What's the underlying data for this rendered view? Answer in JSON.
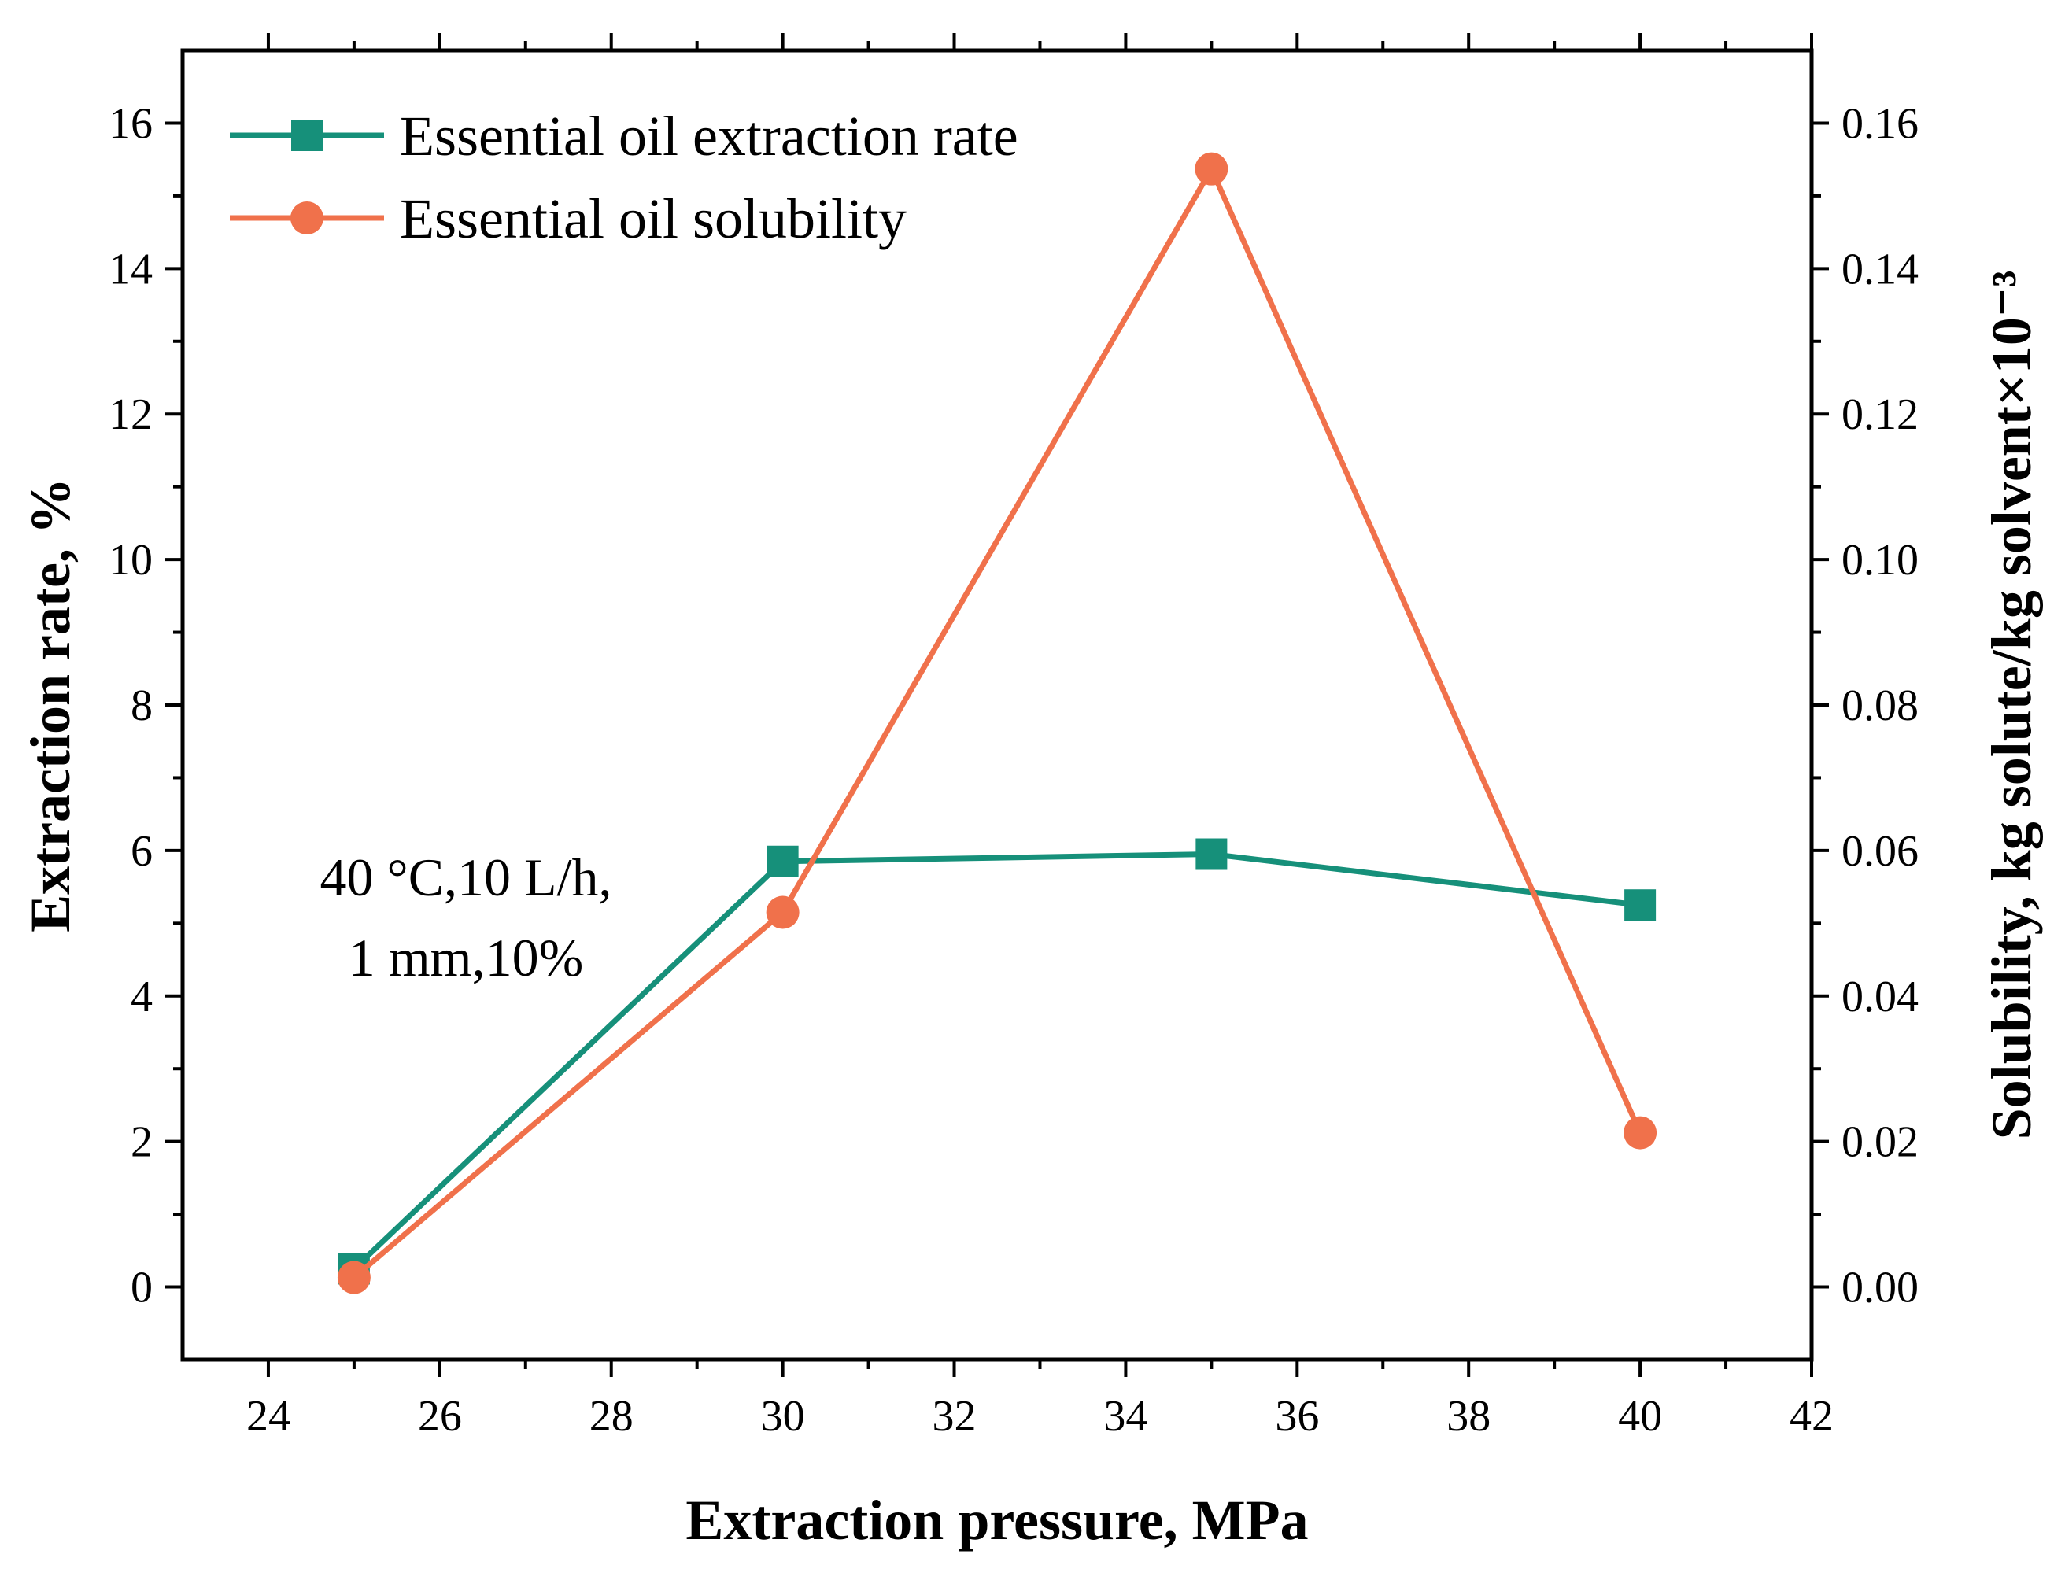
{
  "chart_data": {
    "type": "line",
    "xlabel": "Extraction pressure, MPa",
    "ylabel": "Extraction rate, %",
    "y2label": "Solubility, kg solute/kg solvent×10⁻³",
    "xlim": [
      23,
      42
    ],
    "ylim": [
      -1,
      17
    ],
    "y2lim": [
      -0.01,
      0.17
    ],
    "xticks": [
      "24",
      "26",
      "28",
      "30",
      "32",
      "34",
      "36",
      "38",
      "40",
      "42"
    ],
    "yticks": [
      "0",
      "2",
      "4",
      "6",
      "8",
      "10",
      "12",
      "14",
      "16"
    ],
    "y2ticks": [
      "0.00",
      "0.02",
      "0.04",
      "0.06",
      "0.08",
      "0.10",
      "0.12",
      "0.14",
      "0.16"
    ],
    "grid": false,
    "legend_position": "top-left",
    "annotation_lines": [
      "40 °C,10 L/h,",
      "1 mm,10%"
    ],
    "series": [
      {
        "name": "Essential oil extraction rate",
        "axis": "left",
        "marker": "square",
        "color": "#16907a",
        "x": [
          25,
          30,
          35,
          40
        ],
        "y": [
          0.25,
          5.85,
          5.95,
          5.25
        ]
      },
      {
        "name": "Essential oil solubility",
        "axis": "right",
        "marker": "circle",
        "color": "#f0714b",
        "x": [
          25,
          30,
          35,
          40
        ],
        "y": [
          0.0013,
          0.0515,
          0.1537,
          0.0212
        ]
      }
    ]
  }
}
